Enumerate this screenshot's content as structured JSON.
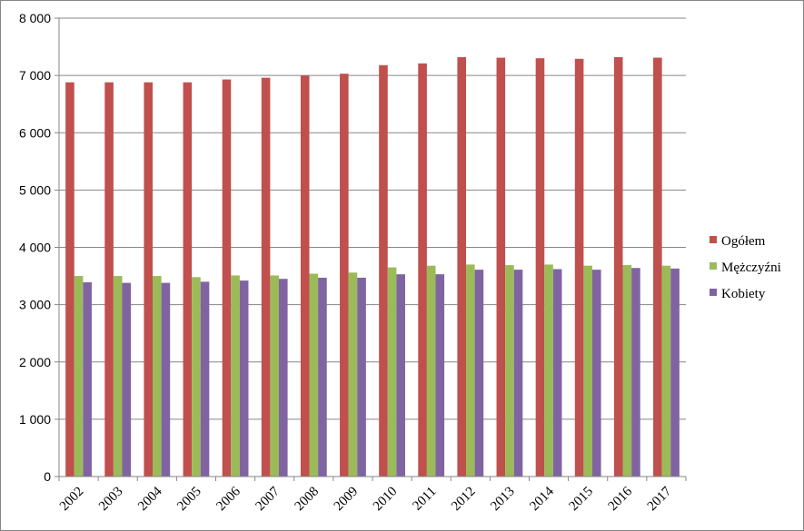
{
  "chart_data": {
    "type": "bar",
    "categories": [
      "2002",
      "2003",
      "2004",
      "2005",
      "2006",
      "2007",
      "2008",
      "2009",
      "2010",
      "2011",
      "2012",
      "2013",
      "2014",
      "2015",
      "2016",
      "2017"
    ],
    "series": [
      {
        "name": "Ogółem",
        "color": "#c0504d",
        "values": [
          6880,
          6880,
          6880,
          6880,
          6930,
          6960,
          7000,
          7030,
          7180,
          7210,
          7320,
          7310,
          7300,
          7290,
          7320,
          7310
        ]
      },
      {
        "name": "Mężczyźni",
        "color": "#9bbb59",
        "values": [
          3500,
          3500,
          3500,
          3480,
          3510,
          3510,
          3540,
          3560,
          3650,
          3680,
          3700,
          3690,
          3700,
          3680,
          3690,
          3680
        ]
      },
      {
        "name": "Kobiety",
        "color": "#8064a2",
        "values": [
          3390,
          3380,
          3380,
          3400,
          3420,
          3450,
          3470,
          3470,
          3530,
          3530,
          3610,
          3610,
          3620,
          3610,
          3640,
          3630
        ]
      }
    ],
    "ylim": [
      0,
      8000
    ],
    "yticks": [
      "0",
      "1 000",
      "2 000",
      "3 000",
      "4 000",
      "5 000",
      "6 000",
      "7 000",
      "8 000"
    ],
    "legend_position": "right",
    "grid": true
  }
}
